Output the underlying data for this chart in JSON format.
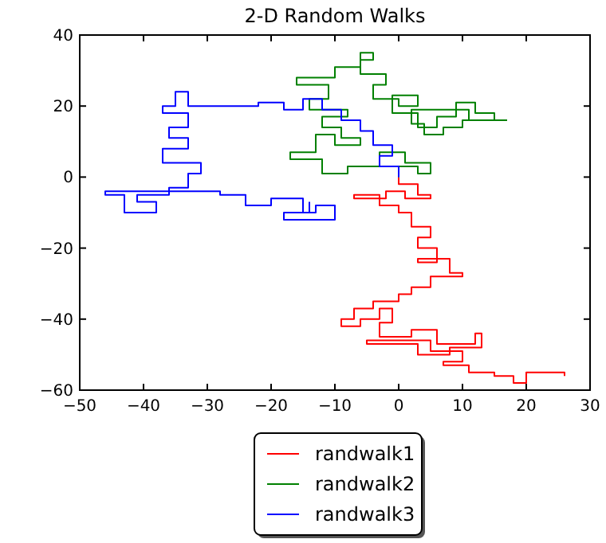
{
  "chart_data": {
    "type": "line",
    "title": "2-D Random Walks",
    "xlim": [
      -50,
      30
    ],
    "ylim": [
      -60,
      40
    ],
    "xticks": [
      -50,
      -40,
      -30,
      -20,
      -10,
      0,
      10,
      20,
      30
    ],
    "yticks": [
      -60,
      -40,
      -20,
      0,
      20,
      40
    ],
    "grid": false,
    "legend": "bottom",
    "line_style": "solid",
    "marker": "none",
    "series": [
      {
        "name": "randwalk1",
        "color": "#ff0000",
        "x": [
          0,
          0,
          3,
          3,
          5,
          5,
          1,
          1,
          -2,
          -2,
          -7,
          -7,
          -3,
          -3,
          0,
          0,
          2,
          2,
          5,
          5,
          3,
          3,
          6,
          6,
          3,
          3,
          8,
          8,
          10,
          10,
          5,
          5,
          2,
          2,
          0,
          0,
          -4,
          -4,
          -7,
          -7,
          -9,
          -9,
          -6,
          -6,
          -3,
          -3,
          -1,
          -1,
          -3,
          -3,
          2,
          2,
          6,
          6,
          12,
          12,
          13,
          13,
          8,
          8,
          3,
          3,
          -5,
          -5,
          5,
          5,
          10,
          10,
          7,
          7,
          11,
          11,
          15,
          15,
          18,
          18,
          20,
          20,
          26,
          26
        ],
        "values": [
          0,
          -2,
          -2,
          -5,
          -5,
          -6,
          -6,
          -4,
          -4,
          -6,
          -6,
          -5,
          -5,
          -8,
          -8,
          -10,
          -10,
          -14,
          -14,
          -17,
          -17,
          -20,
          -20,
          -24,
          -24,
          -23,
          -23,
          -27,
          -27,
          -28,
          -28,
          -31,
          -31,
          -33,
          -33,
          -35,
          -35,
          -37,
          -37,
          -40,
          -40,
          -42,
          -42,
          -40,
          -40,
          -37,
          -37,
          -41,
          -41,
          -45,
          -45,
          -43,
          -43,
          -47,
          -47,
          -44,
          -44,
          -48,
          -48,
          -50,
          -50,
          -47,
          -47,
          -46,
          -46,
          -49,
          -49,
          -52,
          -52,
          -53,
          -53,
          -55,
          -55,
          -56,
          -56,
          -58,
          -58,
          -55,
          -55,
          -56
        ]
      },
      {
        "name": "randwalk2",
        "color": "#008000",
        "x": [
          0,
          0,
          3,
          3,
          5,
          5,
          1,
          1,
          -3,
          -3,
          -8,
          -8,
          -12,
          -12,
          -17,
          -17,
          -13,
          -13,
          -10,
          -10,
          -6,
          -6,
          -9,
          -9,
          -12,
          -12,
          -8,
          -8,
          -14,
          -14,
          -11,
          -11,
          -16,
          -16,
          -10,
          -10,
          -6,
          -6,
          -4,
          -4,
          -6,
          -6,
          -2,
          -2,
          -4,
          -4,
          0,
          0,
          3,
          3,
          -1,
          -1,
          3,
          3,
          6,
          6,
          9,
          9,
          12,
          12,
          15,
          15,
          10,
          10,
          7,
          7,
          4,
          4,
          2,
          2,
          11,
          11,
          17
        ],
        "values": [
          0,
          3,
          3,
          1,
          1,
          4,
          4,
          7,
          7,
          3,
          3,
          1,
          1,
          5,
          5,
          7,
          7,
          12,
          12,
          9,
          9,
          11,
          11,
          14,
          14,
          17,
          17,
          19,
          19,
          22,
          22,
          26,
          26,
          28,
          28,
          31,
          31,
          33,
          33,
          35,
          35,
          29,
          29,
          26,
          26,
          22,
          22,
          20,
          20,
          23,
          23,
          18,
          18,
          14,
          14,
          17,
          17,
          21,
          21,
          18,
          18,
          16,
          16,
          14,
          14,
          12,
          12,
          15,
          15,
          19,
          19,
          16,
          16
        ]
      },
      {
        "name": "randwalk3",
        "color": "#0000ff",
        "x": [
          0,
          0,
          -3,
          -3,
          -1,
          -1,
          -4,
          -4,
          -6,
          -6,
          -9,
          -9,
          -12,
          -12,
          -15,
          -15,
          -18,
          -18,
          -22,
          -22,
          -33,
          -33,
          -35,
          -35,
          -37,
          -37,
          -33,
          -33,
          -36,
          -36,
          -33,
          -33,
          -37,
          -37,
          -31,
          -31,
          -33,
          -33,
          -36,
          -36,
          -41,
          -41,
          -38,
          -38,
          -43,
          -43,
          -46,
          -46,
          -28,
          -28,
          -24,
          -24,
          -20,
          -20,
          -15,
          -15,
          -13,
          -13,
          -10,
          -10,
          -18,
          -18,
          -14,
          -14
        ],
        "values": [
          0,
          3,
          3,
          6,
          6,
          9,
          9,
          13,
          13,
          16,
          16,
          19,
          19,
          22,
          22,
          19,
          19,
          21,
          21,
          20,
          20,
          24,
          24,
          20,
          20,
          18,
          18,
          14,
          14,
          11,
          11,
          8,
          8,
          4,
          4,
          1,
          1,
          -3,
          -3,
          -5,
          -5,
          -7,
          -7,
          -10,
          -10,
          -5,
          -5,
          -4,
          -4,
          -5,
          -5,
          -8,
          -8,
          -6,
          -6,
          -10,
          -10,
          -8,
          -8,
          -12,
          -12,
          -10,
          -10,
          -7
        ]
      }
    ]
  }
}
